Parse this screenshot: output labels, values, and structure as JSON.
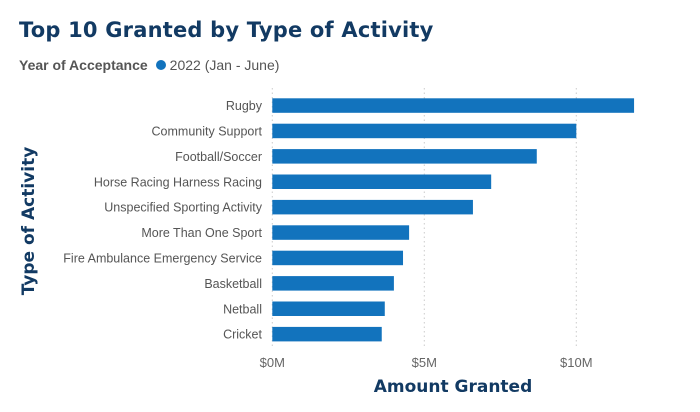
{
  "chart_data": {
    "type": "bar",
    "orientation": "horizontal",
    "title": "Top 10 Granted by Type of Activity",
    "legend": {
      "title": "Year of Acceptance",
      "placement": "top-left"
    },
    "xlabel": "Amount Granted",
    "ylabel": "Type of Activity",
    "xlim": [
      0,
      12
    ],
    "xticks": [
      {
        "value": 0,
        "label": "$0M"
      },
      {
        "value": 5,
        "label": "$5M"
      },
      {
        "value": 10,
        "label": "$10M"
      }
    ],
    "grid": "vertical dotted",
    "categories": [
      "Rugby",
      "Community Support",
      "Football/Soccer",
      "Horse Racing Harness Racing",
      "Unspecified Sporting Activity",
      "More Than One Sport",
      "Fire Ambulance Emergency Service",
      "Basketball",
      "Netball",
      "Cricket"
    ],
    "series": [
      {
        "name": "2022 (Jan - June)",
        "color": "#1273bd",
        "values": [
          11.9,
          10.0,
          8.7,
          7.2,
          6.6,
          4.5,
          4.3,
          4.0,
          3.7,
          3.6
        ]
      }
    ]
  }
}
